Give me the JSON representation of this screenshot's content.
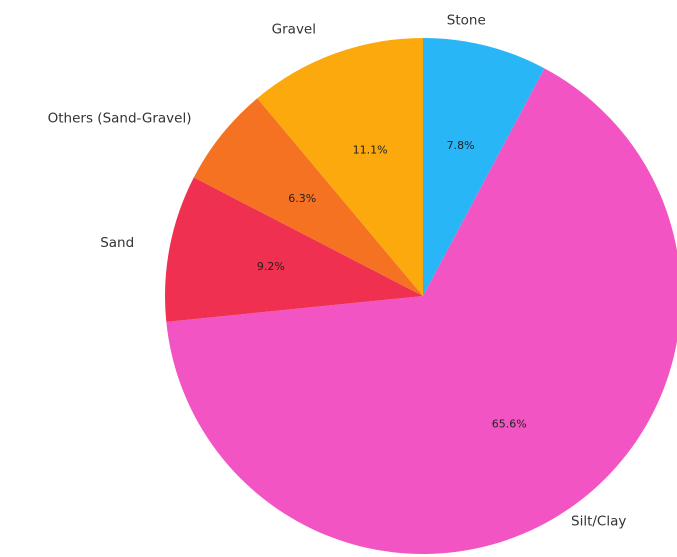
{
  "chart_data": {
    "type": "pie",
    "title": "",
    "start_angle_deg": 90,
    "direction": "clockwise",
    "legend": "none",
    "slices": [
      {
        "label": "Stone",
        "value": 7.8,
        "value_label": "7.8%",
        "color": "#29b6f6"
      },
      {
        "label": "Silt/Clay",
        "value": 65.6,
        "value_label": "65.6%",
        "color": "#f255c3"
      },
      {
        "label": "Sand",
        "value": 9.2,
        "value_label": "9.2%",
        "color": "#f03050"
      },
      {
        "label": "Others (Sand-Gravel)",
        "value": 6.3,
        "value_label": "6.3%",
        "color": "#f57222"
      },
      {
        "label": "Gravel",
        "value": 11.1,
        "value_label": "11.1%",
        "color": "#fba90c"
      }
    ]
  }
}
